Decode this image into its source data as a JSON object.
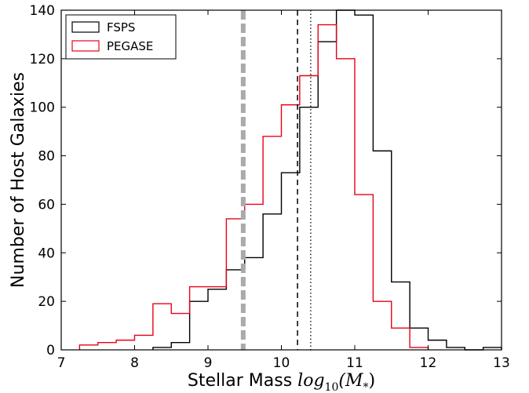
{
  "chart_data": {
    "type": "histogram",
    "title": "",
    "xlabel_text": "Stellar Mass",
    "xlabel_math": "log",
    "xlabel_sub": "10",
    "xlabel_math_tail": "(M",
    "xlabel_sub2": "*",
    "xlabel_close": ")",
    "ylabel": "Number of Host Galaxies",
    "xlim": [
      7,
      13
    ],
    "ylim": [
      0,
      140
    ],
    "xticks": [
      "7",
      "8",
      "9",
      "10",
      "11",
      "12",
      "13"
    ],
    "yticks": [
      "0",
      "20",
      "40",
      "60",
      "80",
      "100",
      "120",
      "140"
    ],
    "grid": false,
    "legend_position": "top-left",
    "bin_width": 0.25,
    "series": [
      {
        "name": "FSPS",
        "color": "#000000",
        "bin_start": 8.25,
        "counts": [
          1,
          3,
          20,
          25,
          33,
          38,
          56,
          73,
          100,
          127,
          140,
          138,
          82,
          28,
          9,
          4,
          1,
          0,
          1
        ]
      },
      {
        "name": "PEGASE",
        "color": "#e8001a",
        "bin_start": 7.25,
        "counts": [
          2,
          3,
          4,
          6,
          19,
          15,
          26,
          26,
          54,
          60,
          88,
          101,
          113,
          134,
          120,
          64,
          20,
          9,
          1
        ]
      }
    ],
    "vertical_lines": [
      {
        "x": 9.48,
        "style": "thick-dashed",
        "color": "#aaaaaa"
      },
      {
        "x": 10.22,
        "style": "dashed",
        "color": "#000000"
      },
      {
        "x": 10.4,
        "style": "dotted",
        "color": "#000000"
      }
    ]
  }
}
